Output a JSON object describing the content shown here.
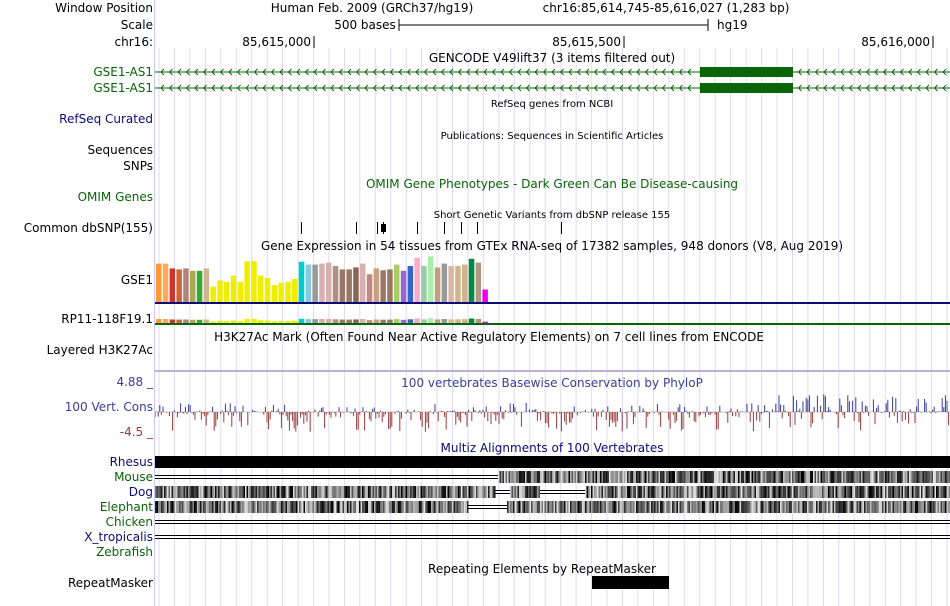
{
  "browser": {
    "header": {
      "window_position_label": "Window Position",
      "scale_label": "Scale",
      "chrom_label": "chr16:",
      "assembly": "Human Feb. 2009 (GRCh37/hg19)",
      "position": "chr16:85,614,745-85,616,027 (1,283 bp)",
      "scale_text": "500 bases",
      "db": "hg19",
      "ticks": [
        "85,615,000",
        "85,615,500",
        "85,616,000"
      ]
    },
    "tracks": {
      "gencode": {
        "title": "GENCODE V49lift37 (3 items filtered out)",
        "items": [
          "GSE1-AS1",
          "GSE1-AS1"
        ],
        "color": "#0a640a"
      },
      "refseq": {
        "title": "RefSeq genes from NCBI",
        "label": "RefSeq Curated",
        "color": "#0c0c78"
      },
      "publications": {
        "title": "Publications: Sequences in Scientific Articles",
        "label_line1": "Sequences",
        "label_line2": "SNPs"
      },
      "omim": {
        "title": "OMIM Gene Phenotypes - Dark Green Can Be Disease-causing",
        "label": "OMIM Genes",
        "color": "#0a640a"
      },
      "dbsnp": {
        "title": "Short Genetic Variants from dbSNP release 155",
        "label": "Common dbSNP(155)"
      },
      "gtex": {
        "title": "Gene Expression in 54 tissues from GTEx RNA-seq of 17382 samples, 948 donors (V8, Aug 2019)",
        "genes": [
          "GSE1",
          "RP11-118F19.1"
        ],
        "gse1_bars": [
          {
            "c": "#ff9933",
            "v": 0.8
          },
          {
            "c": "#ffaa55",
            "v": 0.8
          },
          {
            "c": "#cc3333",
            "v": 0.7
          },
          {
            "c": "#cc6633",
            "v": 0.68
          },
          {
            "c": "#b48080",
            "v": 0.7
          },
          {
            "c": "#aaaa55",
            "v": 0.65
          },
          {
            "c": "#33aa33",
            "v": 0.65
          },
          {
            "c": "#d2b48c",
            "v": 0.7
          },
          {
            "c": "#eeee00",
            "v": 0.32
          },
          {
            "c": "#eeee00",
            "v": 0.45
          },
          {
            "c": "#eeee00",
            "v": 0.42
          },
          {
            "c": "#eeee00",
            "v": 0.55
          },
          {
            "c": "#eeee00",
            "v": 0.42
          },
          {
            "c": "#eeee00",
            "v": 0.85
          },
          {
            "c": "#eeee00",
            "v": 0.85
          },
          {
            "c": "#eeee00",
            "v": 0.55
          },
          {
            "c": "#eeee00",
            "v": 0.5
          },
          {
            "c": "#eeee00",
            "v": 0.35
          },
          {
            "c": "#eeee00",
            "v": 0.4
          },
          {
            "c": "#eeee00",
            "v": 0.42
          },
          {
            "c": "#eeee00",
            "v": 0.48
          },
          {
            "c": "#00cccc",
            "v": 0.84
          },
          {
            "c": "#88c8e0",
            "v": 0.78
          },
          {
            "c": "#999999",
            "v": 0.78
          },
          {
            "c": "#d8b0b0",
            "v": 0.8
          },
          {
            "c": "#d8b0b0",
            "v": 0.82
          },
          {
            "c": "#b09080",
            "v": 0.75
          },
          {
            "c": "#997766",
            "v": 0.68
          },
          {
            "c": "#997766",
            "v": 0.68
          },
          {
            "c": "#886655",
            "v": 0.72
          },
          {
            "c": "#d8b0b0",
            "v": 0.8
          },
          {
            "c": "#c08880",
            "v": 0.58
          },
          {
            "c": "#c8a080",
            "v": 0.7
          },
          {
            "c": "#997766",
            "v": 0.66
          },
          {
            "c": "#997766",
            "v": 0.68
          },
          {
            "c": "#aacc66",
            "v": 0.78
          },
          {
            "c": "#9966cc",
            "v": 0.65
          },
          {
            "c": "#3366cc",
            "v": 0.75
          },
          {
            "c": "#ffaacc",
            "v": 0.92
          },
          {
            "c": "#99ccaa",
            "v": 0.75
          },
          {
            "c": "#aaeeaa",
            "v": 0.95
          },
          {
            "c": "#c0a080",
            "v": 0.72
          },
          {
            "c": "#999999",
            "v": 0.8
          },
          {
            "c": "#d8b8a0",
            "v": 0.75
          },
          {
            "c": "#d2b48c",
            "v": 0.75
          },
          {
            "c": "#d2b48c",
            "v": 0.78
          },
          {
            "c": "#008844",
            "v": 0.9
          },
          {
            "c": "#b09880",
            "v": 0.82
          },
          {
            "c": "#ee00ee",
            "v": 0.26
          }
        ]
      },
      "h3k27ac": {
        "title": "H3K27Ac Mark (Often Found Near Active Regulatory Elements) on 7 cell lines from ENCODE",
        "label": "Layered H3K27Ac"
      },
      "phylop": {
        "title": "100 vertebrates Basewise Conservation by PhyloP",
        "label": "100 Vert. Cons",
        "max": "4.88 _",
        "min": "-4.5 _",
        "pos_color": "#3c3c96",
        "neg_color": "#963c3c"
      },
      "multiz": {
        "title": "Multiz Alignments of 100 Vertebrates",
        "species": [
          {
            "name": "Rhesus",
            "color": "#0c0c78"
          },
          {
            "name": "Mouse",
            "color": "#0a640a"
          },
          {
            "name": "Dog",
            "color": "#0c0c78"
          },
          {
            "name": "Elephant",
            "color": "#0a640a"
          },
          {
            "name": "Chicken",
            "color": "#0a640a"
          },
          {
            "name": "X_tropicalis",
            "color": "#0c0c78"
          },
          {
            "name": "Zebrafish",
            "color": "#0a640a"
          }
        ]
      },
      "repeatmasker": {
        "title": "Repeating Elements by RepeatMasker",
        "label": "RepeatMasker"
      }
    }
  }
}
